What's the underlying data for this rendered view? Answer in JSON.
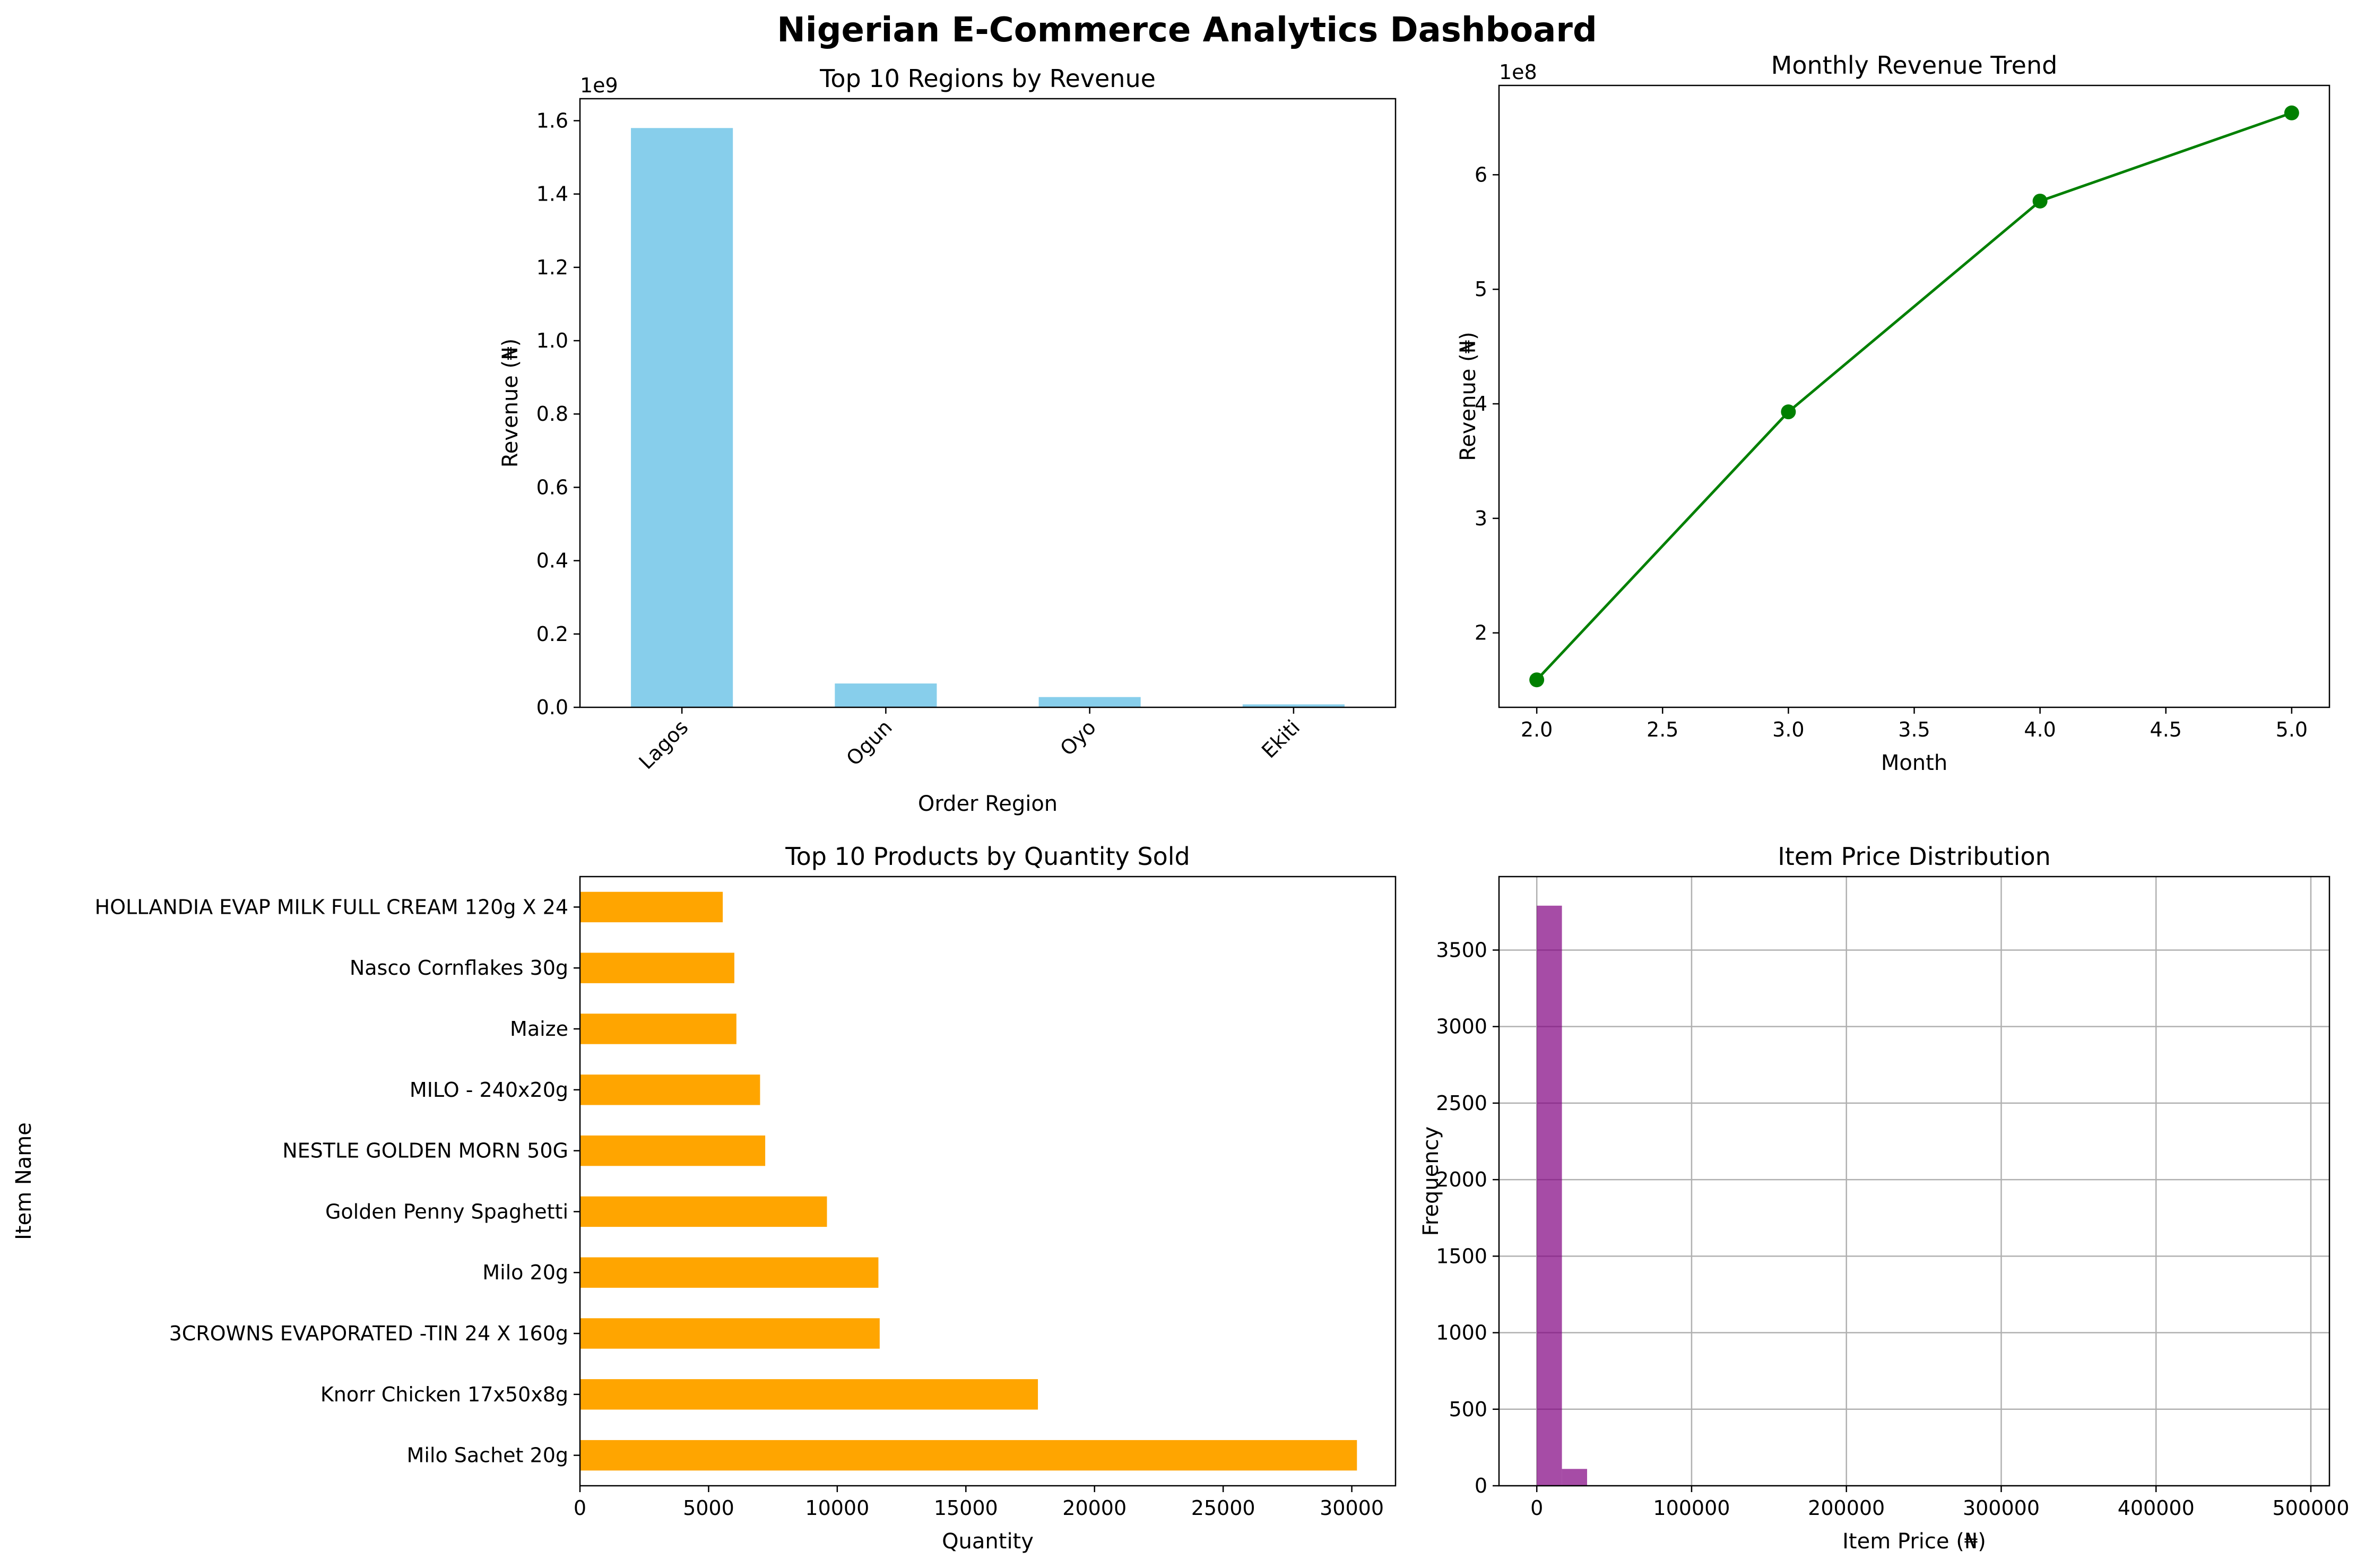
{
  "suptitle": "Nigerian E-Commerce Analytics Dashboard",
  "chart_data": [
    {
      "type": "bar",
      "title": "Top 10 Regions by Revenue",
      "xlabel": "Order Region",
      "ylabel": "Revenue (₦)",
      "ylim": [
        0,
        1.66
      ],
      "yscale_label": "1e9",
      "categories": [
        "Lagos",
        "Ogun",
        "Oyo",
        "Ekiti"
      ],
      "values": [
        1.58,
        0.065,
        0.028,
        0.008
      ],
      "yticks": [
        "0.0",
        "0.2",
        "0.4",
        "0.6",
        "0.8",
        "1.0",
        "1.2",
        "1.4",
        "1.6"
      ],
      "color": "#87CEEB",
      "grid": false
    },
    {
      "type": "line",
      "title": "Monthly Revenue Trend",
      "xlabel": "Month",
      "ylabel": "Revenue (₦)",
      "yscale_label": "1e8",
      "x": [
        2.0,
        3.0,
        4.0,
        5.0
      ],
      "values": [
        1.59,
        3.93,
        5.77,
        6.54
      ],
      "xlim": [
        1.85,
        5.15
      ],
      "ylim": [
        1.35,
        6.78
      ],
      "xticks": [
        "2.0",
        "2.5",
        "3.0",
        "3.5",
        "4.0",
        "4.5",
        "5.0"
      ],
      "yticks": [
        "2",
        "3",
        "4",
        "5",
        "6"
      ],
      "color": "#008000",
      "marker": "circle",
      "grid": false
    },
    {
      "type": "bar",
      "orientation": "horizontal",
      "title": "Top 10 Products by Quantity Sold",
      "xlabel": "Quantity",
      "ylabel": "Item Name",
      "categories": [
        "Milo Sachet 20g",
        "Knorr Chicken 17x50x8g",
        "3CROWNS EVAPORATED -TIN 24 X 160g",
        "Milo 20g",
        "Golden Penny Spaghetti",
        "NESTLE GOLDEN MORN 50G",
        "MILO - 240x20g",
        "Maize",
        "Nasco Cornflakes 30g",
        "HOLLANDIA EVAP MILK FULL CREAM 120g X 24"
      ],
      "values": [
        30200,
        17800,
        11650,
        11600,
        9600,
        7200,
        7000,
        6080,
        6000,
        5550
      ],
      "xlim": [
        0,
        31700
      ],
      "xticks": [
        "0",
        "5000",
        "10000",
        "15000",
        "20000",
        "25000",
        "30000"
      ],
      "color": "#FFA500",
      "grid": false
    },
    {
      "type": "histogram",
      "title": "Item Price Distribution",
      "xlabel": "Item Price (₦)",
      "ylabel": "Frequency",
      "bin_width": 16250,
      "bin_start": 0,
      "values": [
        3790,
        110,
        2,
        1,
        1,
        0,
        0,
        0,
        0,
        0,
        0,
        0,
        0,
        0,
        0,
        0,
        0,
        0,
        0,
        0,
        0,
        0,
        0,
        0,
        0,
        0,
        0,
        0,
        0,
        1
      ],
      "xlim": [
        -24400,
        512000
      ],
      "ylim": [
        0,
        3980
      ],
      "xticks": [
        "0",
        "100000",
        "200000",
        "300000",
        "400000",
        "500000"
      ],
      "yticks": [
        "0",
        "500",
        "1000",
        "1500",
        "2000",
        "2500",
        "3000",
        "3500"
      ],
      "color": "#800080",
      "alpha": 0.7,
      "grid": true
    }
  ]
}
